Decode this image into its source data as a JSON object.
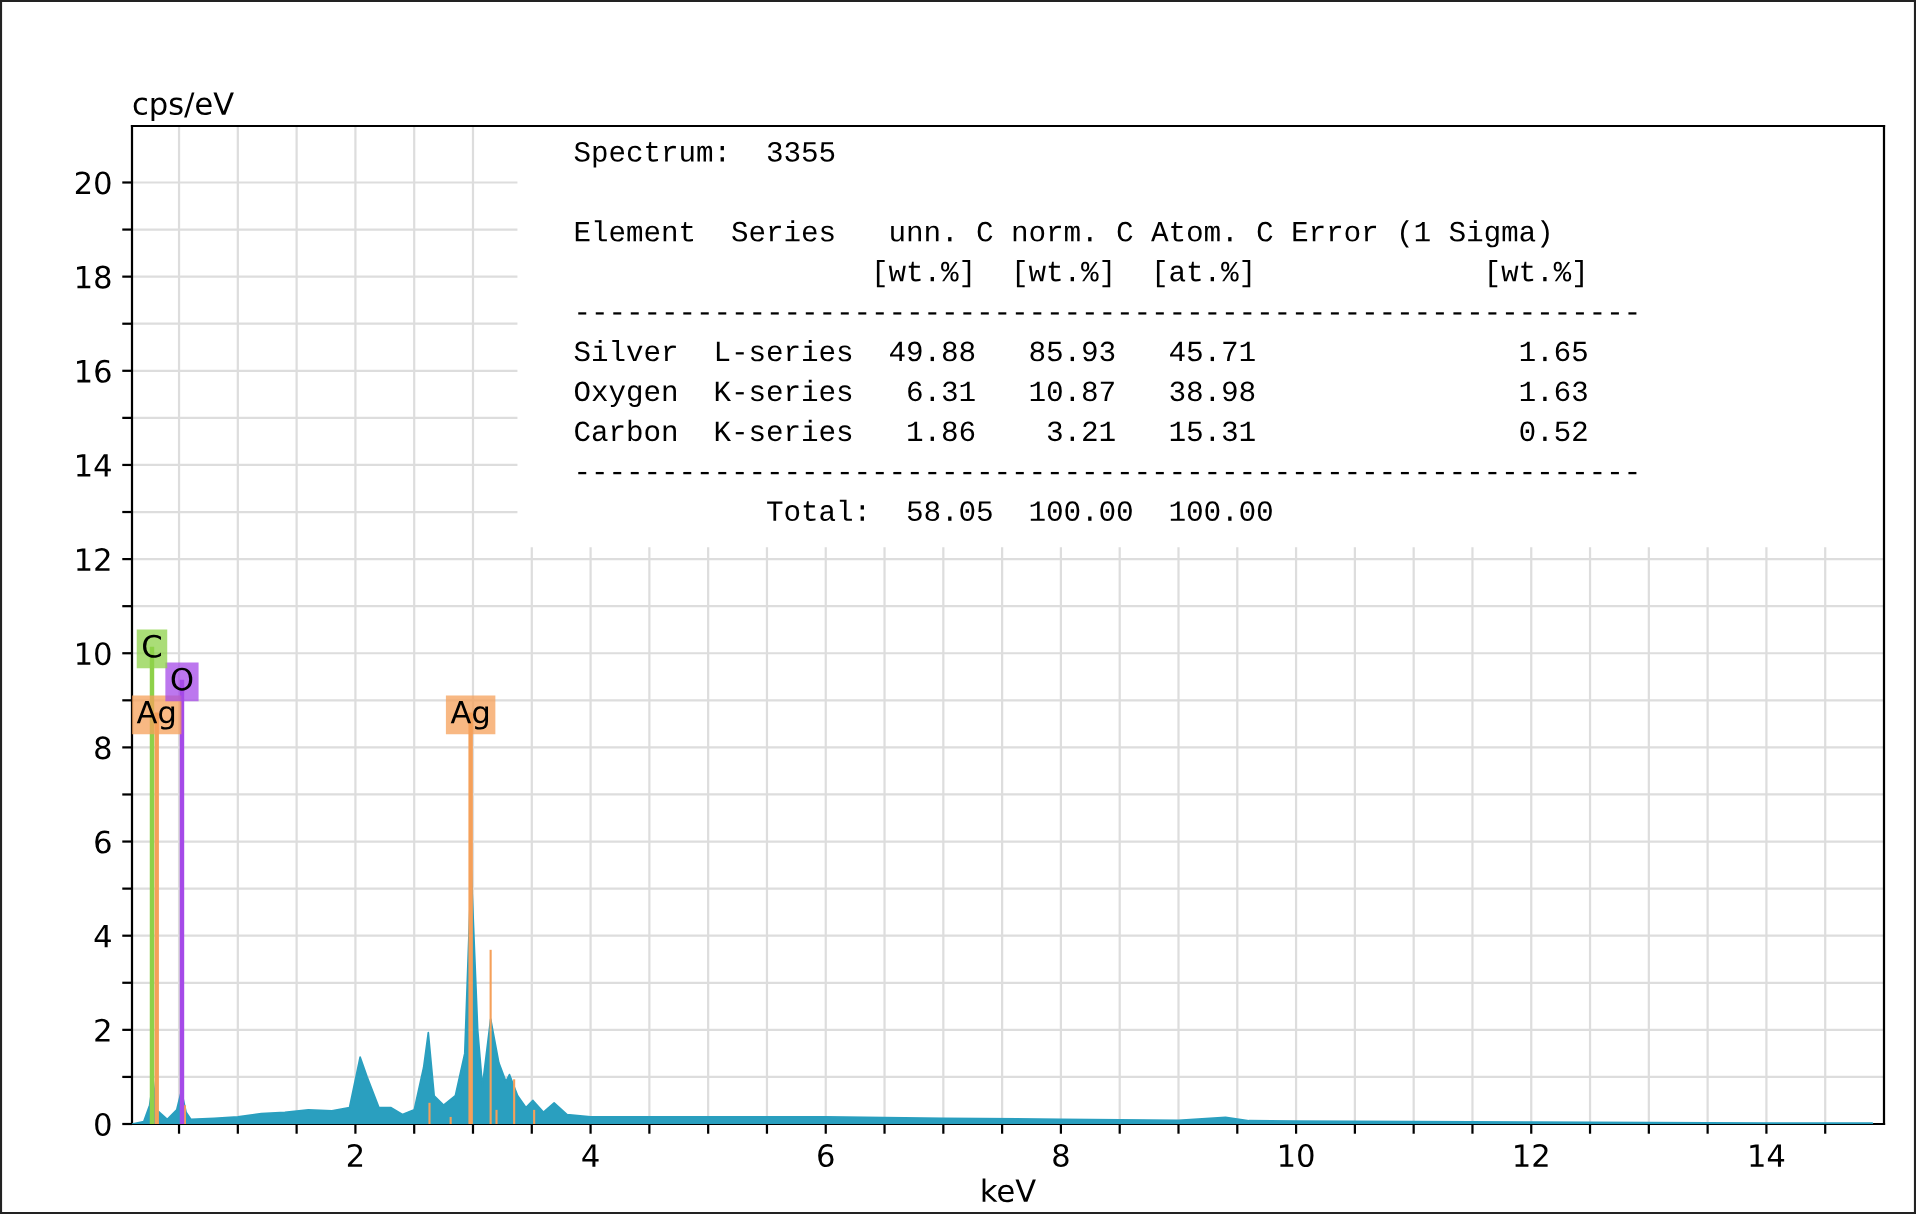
{
  "chart_data": {
    "type": "area",
    "xlabel": "keV",
    "ylabel": "cps/eV",
    "xlim": [
      0.1,
      15
    ],
    "ylim": [
      0,
      21.2
    ],
    "xticks": [
      {
        "value": 0.5,
        "label": null
      },
      {
        "value": 1,
        "label": null
      },
      {
        "value": 1.5,
        "label": null
      },
      2,
      {
        "value": 2.5,
        "label": null
      },
      {
        "value": 3,
        "label": null
      },
      {
        "value": 3.5,
        "label": null
      },
      4,
      {
        "value": 4.5,
        "label": null
      },
      {
        "value": 5,
        "label": null
      },
      {
        "value": 5.5,
        "label": null
      },
      6,
      {
        "value": 6.5,
        "label": null
      },
      {
        "value": 7,
        "label": null
      },
      {
        "value": 7.5,
        "label": null
      },
      8,
      {
        "value": 8.5,
        "label": null
      },
      {
        "value": 9,
        "label": null
      },
      {
        "value": 9.5,
        "label": null
      },
      10,
      {
        "value": 10.5,
        "label": null
      },
      {
        "value": 11,
        "label": null
      },
      {
        "value": 11.5,
        "label": null
      },
      12,
      {
        "value": 12.5,
        "label": null
      },
      {
        "value": 13,
        "label": null
      },
      {
        "value": 13.5,
        "label": null
      },
      14,
      {
        "value": 14.5,
        "label": null
      }
    ],
    "yticks": [
      0,
      {
        "value": 1,
        "label": null
      },
      2,
      {
        "value": 3,
        "label": null
      },
      4,
      {
        "value": 5,
        "label": null
      },
      6,
      {
        "value": 7,
        "label": null
      },
      8,
      {
        "value": 9,
        "label": null
      },
      10,
      {
        "value": 11,
        "label": null
      },
      12,
      {
        "value": 13,
        "label": null
      },
      14,
      {
        "value": 15,
        "label": null
      },
      16,
      {
        "value": 17,
        "label": null
      },
      18,
      {
        "value": 19,
        "label": null
      },
      20
    ],
    "grid": true,
    "series": [
      {
        "color": "#2a9fbf",
        "x": [
          0.1,
          0.2,
          0.25,
          0.28,
          0.31,
          0.4,
          0.48,
          0.52,
          0.56,
          0.6,
          0.8,
          1.0,
          1.2,
          1.4,
          1.6,
          1.8,
          1.95,
          2.04,
          2.1,
          2.2,
          2.3,
          2.4,
          2.5,
          2.58,
          2.62,
          2.67,
          2.75,
          2.85,
          2.93,
          2.985,
          3.04,
          3.08,
          3.15,
          3.22,
          3.28,
          3.31,
          3.38,
          3.45,
          3.51,
          3.6,
          3.69,
          3.8,
          4.0,
          5,
          6,
          7,
          8,
          9,
          9.4,
          9.6,
          10,
          11,
          12,
          13,
          14,
          14.9
        ],
        "values": [
          0,
          0.05,
          0.4,
          0.92,
          0.3,
          0.1,
          0.3,
          0.7,
          0.25,
          0.1,
          0.12,
          0.15,
          0.22,
          0.25,
          0.3,
          0.28,
          0.35,
          1.42,
          1.0,
          0.35,
          0.35,
          0.2,
          0.3,
          1.2,
          1.94,
          0.6,
          0.4,
          0.6,
          1.5,
          5.4,
          2.0,
          0.8,
          2.23,
          1.3,
          0.9,
          1.05,
          0.6,
          0.35,
          0.5,
          0.25,
          0.45,
          0.2,
          0.15,
          0.15,
          0.15,
          0.12,
          0.1,
          0.08,
          0.14,
          0.07,
          0.06,
          0.05,
          0.04,
          0.03,
          0.02,
          0.02
        ]
      },
      {
        "type": "bar",
        "color": "#f5a05a",
        "x": [
          0.55,
          2.63,
          2.81,
          3.15,
          3.2,
          3.35,
          3.52
        ],
        "values": [
          0.4,
          0.45,
          0.15,
          3.7,
          0.3,
          0.95,
          0.3
        ]
      }
    ],
    "ref_lines": [
      {
        "axis": "x",
        "value": 0.31,
        "label": "Ag",
        "color": "#f5a05a"
      },
      {
        "axis": "x",
        "value": 2.98,
        "label": "Ag",
        "color": "#f5a05a"
      },
      {
        "axis": "x",
        "value": 0.525,
        "label": "O",
        "color": "#a54ae8"
      },
      {
        "axis": "x",
        "value": 0.27,
        "label": "C",
        "color": "#8ed14a"
      }
    ],
    "annotations": [
      "Spectrum:  3355",
      "Element  Series   unn. C norm. C Atom. C Error (1 Sigma)",
      "                 [wt.%]  [wt.%]  [at.%]             [wt.%]",
      "-------------------------------------------------------------",
      "Silver  L-series  49.88   85.93   45.71               1.65",
      "Oxygen  K-series   6.31   10.87   38.98               1.63",
      "Carbon  K-series   1.86    3.21   15.31               0.52",
      "-------------------------------------------------------------",
      "           Total:  58.05  100.00  100.00"
    ]
  }
}
